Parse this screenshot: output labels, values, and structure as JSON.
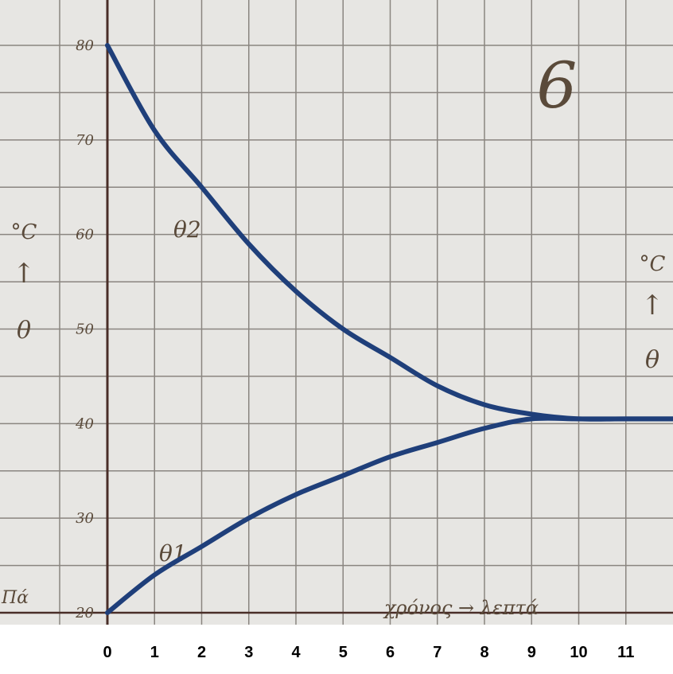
{
  "chart_data": {
    "type": "line",
    "annotation": "6",
    "corner_text": "Πά",
    "xlabel": "χρόνος → λεπτά",
    "ylabel": [
      "°C",
      "↑",
      "θ"
    ],
    "y2label": [
      "°C",
      "↑",
      "θ"
    ],
    "x": [
      0,
      1,
      2,
      3,
      4,
      5,
      6,
      7,
      8,
      9,
      10,
      11,
      12
    ],
    "series": [
      {
        "name": "θ2",
        "color": "#1f3f7a",
        "values": [
          80,
          71,
          65,
          59,
          54,
          50,
          47,
          44,
          42,
          41,
          40.5,
          40.5,
          40.5
        ]
      },
      {
        "name": "θ1",
        "color": "#1f3f7a",
        "values": [
          20,
          24,
          27,
          30,
          32.5,
          34.5,
          36.5,
          38,
          39.5,
          40.5,
          40.5,
          40.5,
          40.5
        ]
      }
    ],
    "xlim": [
      0,
      12
    ],
    "ylim": [
      20,
      80
    ],
    "xticks": [
      0,
      1,
      2,
      3,
      4,
      5,
      6,
      7,
      8,
      9,
      10,
      11
    ],
    "yticks": [
      20,
      30,
      40,
      50,
      60,
      70,
      80
    ],
    "yminor": [
      25,
      35,
      45,
      55,
      65,
      75
    ],
    "grid": true
  }
}
